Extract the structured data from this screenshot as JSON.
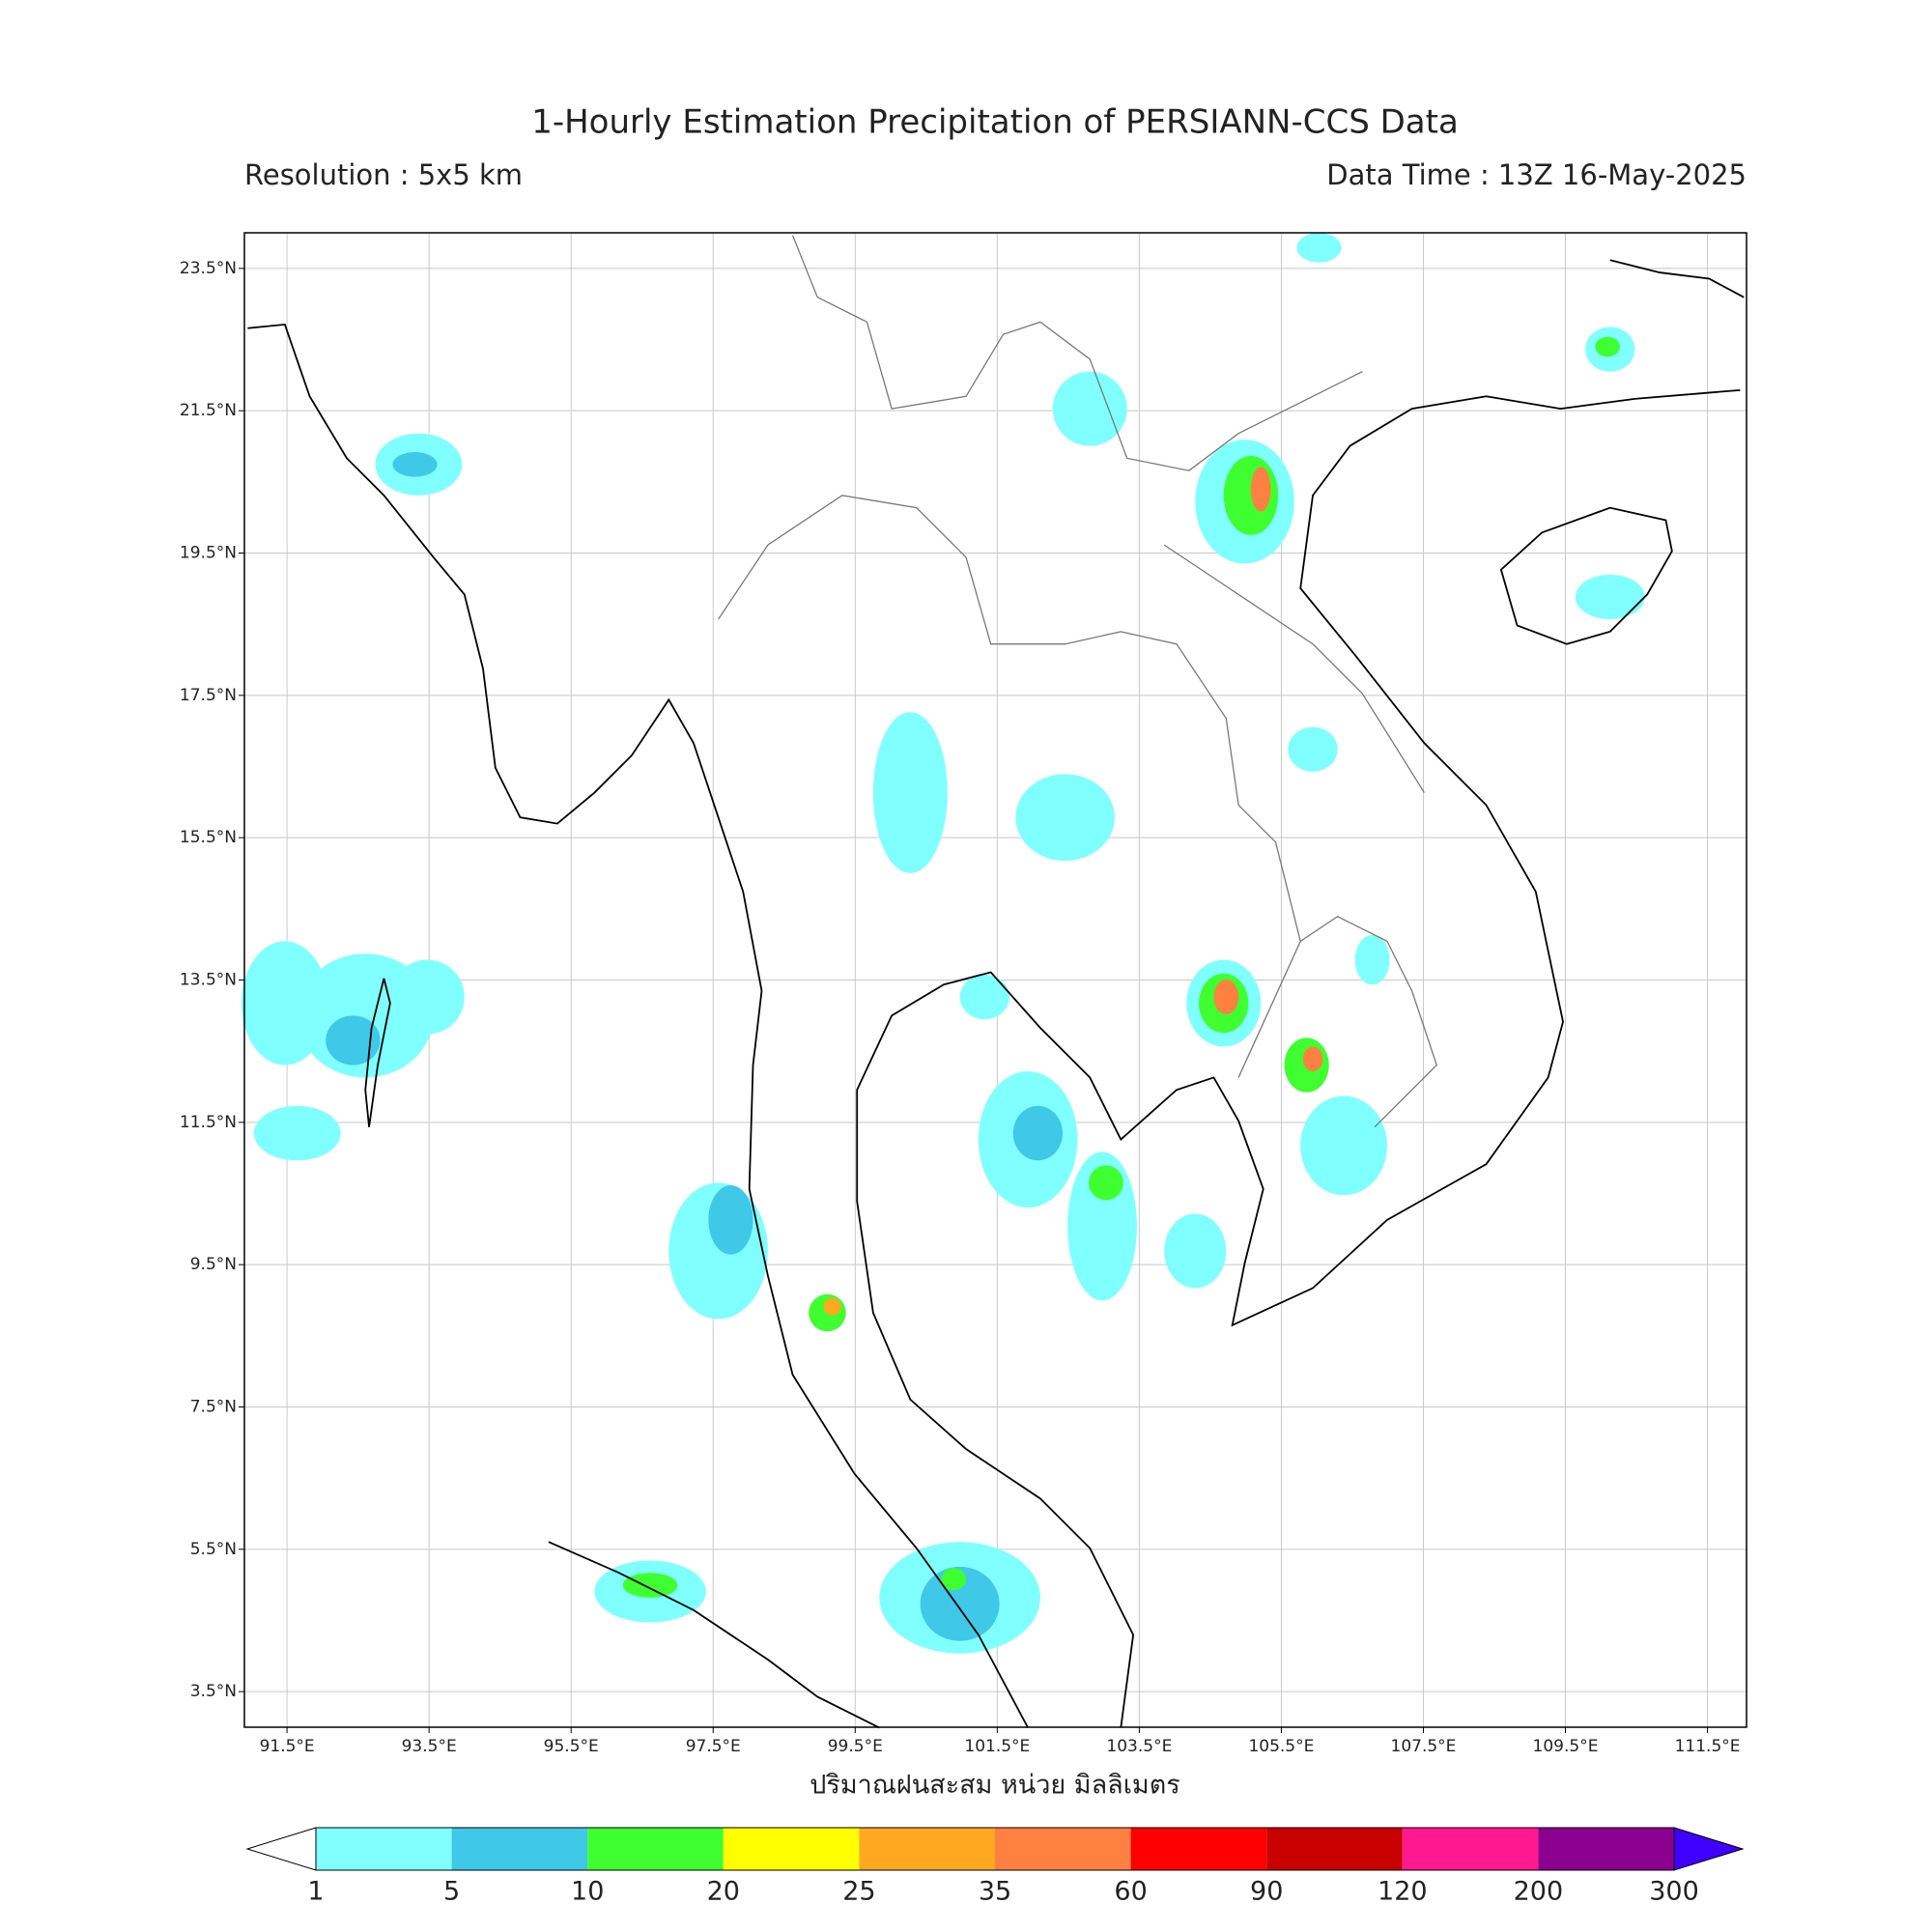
{
  "header": {
    "title": "1-Hourly Estimation Precipitation of PERSIANN-CCS Data",
    "resolution": "Resolution : 5x5 km",
    "data_time": "Data Time : 13Z 16-May-2025"
  },
  "map": {
    "xlim": [
      90.9,
      112.05
    ],
    "ylim": [
      3.0,
      24.0
    ],
    "lon_ticks": [
      {
        "value": 91.5,
        "label": "91.5°E"
      },
      {
        "value": 93.5,
        "label": "93.5°E"
      },
      {
        "value": 95.5,
        "label": "95.5°E"
      },
      {
        "value": 97.5,
        "label": "97.5°E"
      },
      {
        "value": 99.5,
        "label": "99.5°E"
      },
      {
        "value": 101.5,
        "label": "101.5°E"
      },
      {
        "value": 103.5,
        "label": "103.5°E"
      },
      {
        "value": 105.5,
        "label": "105.5°E"
      },
      {
        "value": 107.5,
        "label": "107.5°E"
      },
      {
        "value": 109.5,
        "label": "109.5°E"
      },
      {
        "value": 111.5,
        "label": "111.5°E"
      }
    ],
    "lat_ticks": [
      {
        "value": 23.5,
        "label": "23.5°N"
      },
      {
        "value": 21.5,
        "label": "21.5°N"
      },
      {
        "value": 19.5,
        "label": "19.5°N"
      },
      {
        "value": 17.5,
        "label": "17.5°N"
      },
      {
        "value": 15.5,
        "label": "15.5°N"
      },
      {
        "value": 13.5,
        "label": "13.5°N"
      },
      {
        "value": 11.5,
        "label": "11.5°N"
      },
      {
        "value": 9.5,
        "label": "9.5°N"
      },
      {
        "value": 7.5,
        "label": "7.5°N"
      },
      {
        "value": 5.5,
        "label": "5.5°N"
      },
      {
        "value": 3.5,
        "label": "3.5°N"
      }
    ],
    "grid": true,
    "axis_label": "ปริมาณฝนสะสม หน่วย มิลลิเมตร"
  },
  "colorbar": {
    "levels": [
      1,
      5,
      10,
      20,
      25,
      35,
      60,
      90,
      120,
      200,
      300
    ],
    "colors": [
      "#80ffff",
      "#40c8e8",
      "#40ff30",
      "#ffff00",
      "#ffa820",
      "#ff8040",
      "#ff0000",
      "#c80000",
      "#ff1890",
      "#8c0090"
    ],
    "under_color": "#ffffff",
    "over_color": "#4000ff"
  }
}
